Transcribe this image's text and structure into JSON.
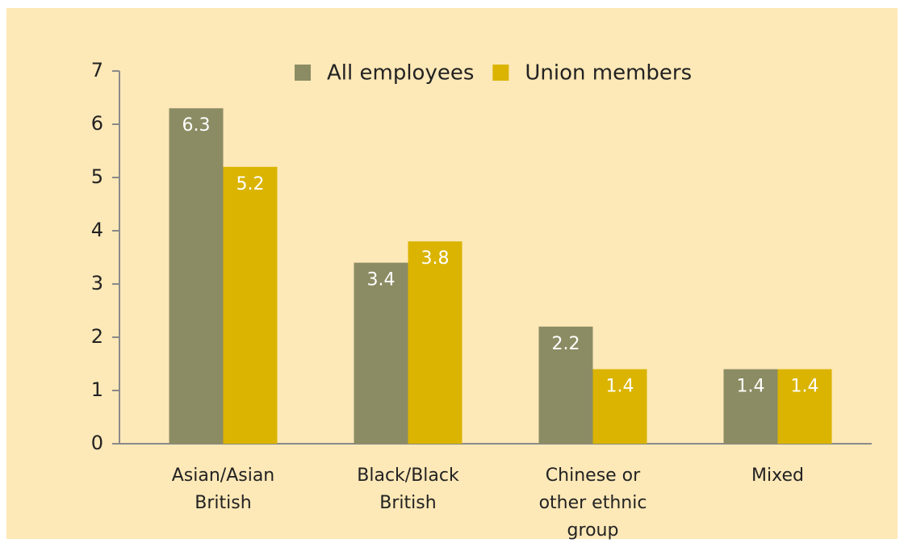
{
  "chart_data": {
    "type": "bar",
    "categories": [
      "Asian/Asian British",
      "Black/Black British",
      "Chinese or other ethnic group",
      "Mixed"
    ],
    "series": [
      {
        "name": "All employees",
        "color": "#8c8c64",
        "values": [
          6.3,
          3.4,
          2.2,
          1.4
        ]
      },
      {
        "name": "Union members",
        "color": "#dab400",
        "values": [
          5.2,
          3.8,
          1.4,
          1.4
        ]
      }
    ],
    "ylim": [
      0,
      7
    ],
    "yticks": [
      0,
      1,
      2,
      3,
      4,
      5,
      6,
      7
    ],
    "grid": false,
    "legend": "top"
  }
}
